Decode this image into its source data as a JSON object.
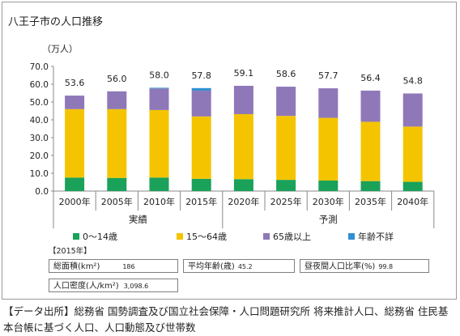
{
  "title": "八王子市の人口推移",
  "source_text": "【データ出所】総務省 国勢調査及び国立社会保障・人口問題研究所 将来推計人口、総務省 住民基本台帳に基づく人口、人口動態及び世帯数",
  "stats": {
    "heading": "【2015年】",
    "area_label": "総面積(km²)",
    "area_value": "186",
    "age_label": "平均年齢(歳)",
    "age_value": "45.2",
    "ratio_label": "昼夜間人口比率(%)",
    "ratio_value": "99.8",
    "density_label": "人口密度(人/km²)",
    "density_value": "3,098.6"
  },
  "chart_data": {
    "type": "bar",
    "stacked": true,
    "y_unit_label": "（万人）",
    "ylim": [
      0,
      70
    ],
    "yticks": [
      "0.0",
      "10.0",
      "20.0",
      "30.0",
      "40.0",
      "50.0",
      "60.0",
      "70.0"
    ],
    "grid": false,
    "categories": [
      "2000年",
      "2005年",
      "2010年",
      "2015年",
      "2020年",
      "2025年",
      "2030年",
      "2035年",
      "2040年"
    ],
    "totals": [
      "53.6",
      "56.0",
      "58.0",
      "57.8",
      "59.1",
      "58.6",
      "57.7",
      "56.4",
      "54.8"
    ],
    "groups": [
      {
        "label": "実績",
        "from": 0,
        "to": 3
      },
      {
        "label": "予測",
        "from": 4,
        "to": 8
      }
    ],
    "legend_position": "bottom",
    "series": [
      {
        "name": "0～14歳",
        "color": "#1aa15a",
        "values": [
          7.6,
          7.4,
          7.6,
          6.9,
          6.7,
          6.3,
          5.9,
          5.6,
          5.2
        ]
      },
      {
        "name": "15～64歳",
        "color": "#f5c400",
        "values": [
          38.4,
          38.6,
          37.9,
          35.0,
          36.5,
          35.9,
          35.2,
          33.3,
          31.0
        ]
      },
      {
        "name": "65歳以上",
        "color": "#8e78b8",
        "values": [
          7.6,
          10.0,
          12.1,
          14.5,
          15.9,
          16.4,
          16.6,
          17.5,
          18.6
        ]
      },
      {
        "name": "年齢不詳",
        "color": "#2f8fd0",
        "values": [
          0.0,
          0.0,
          0.4,
          1.4,
          0.0,
          0.0,
          0.0,
          0.0,
          0.0
        ]
      }
    ]
  }
}
